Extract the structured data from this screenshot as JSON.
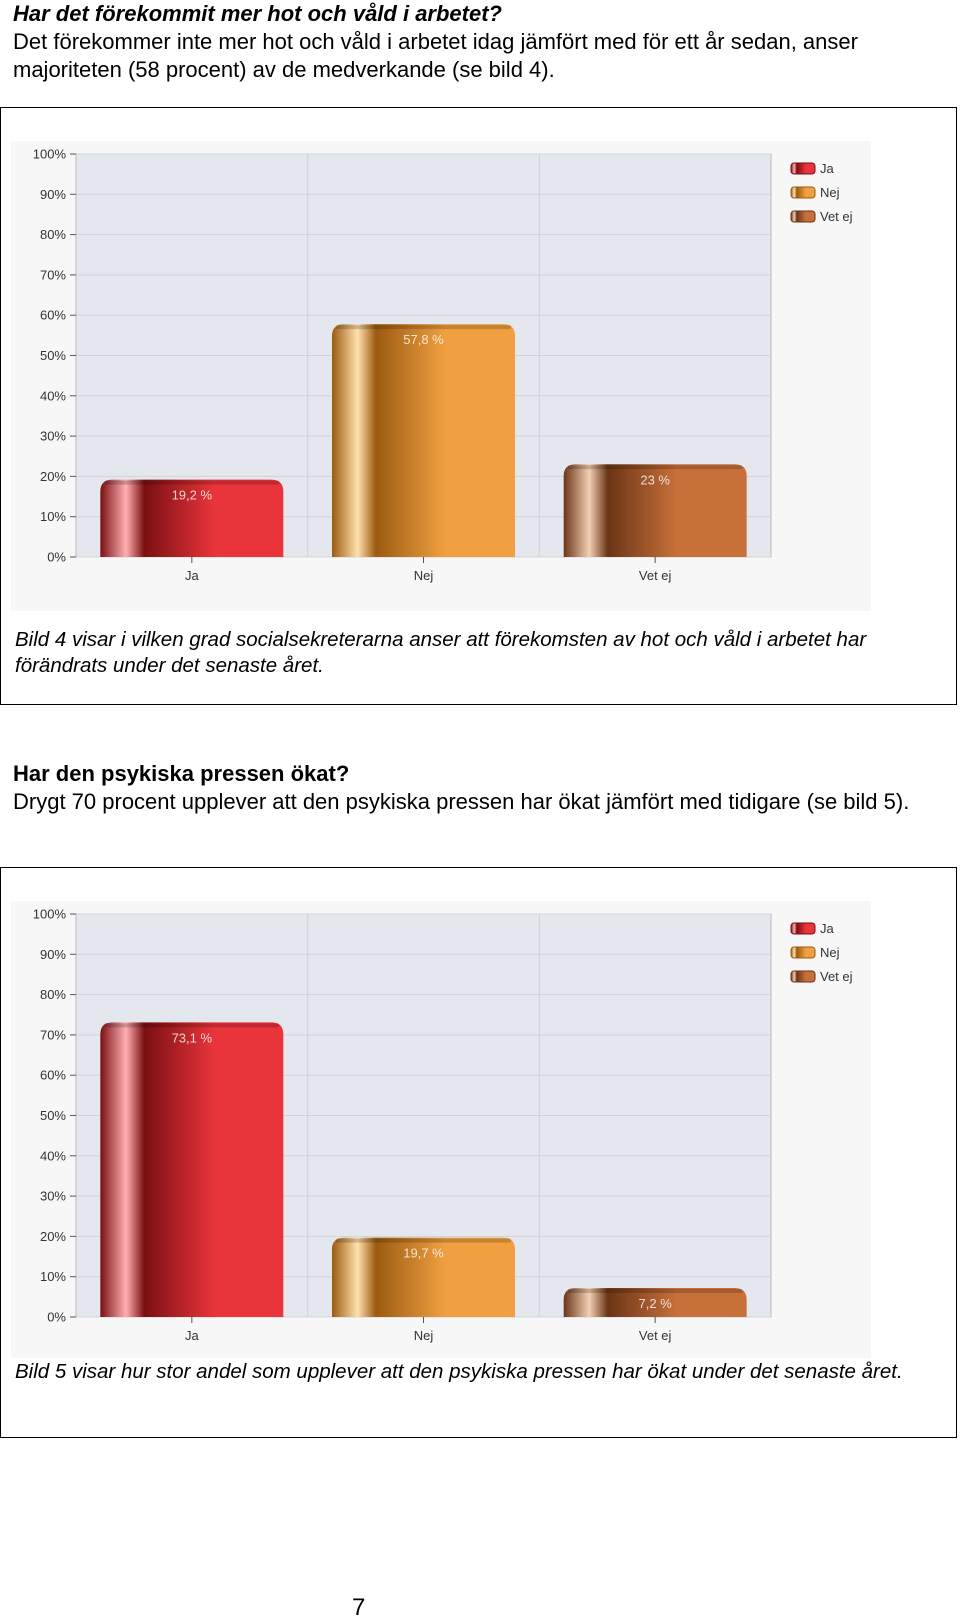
{
  "section1": {
    "heading": "Har det förekommit mer hot och våld i arbetet?",
    "body": "Det förekommer inte mer hot och våld i arbetet idag jämfört med för ett år sedan, anser majoriteten (58 procent) av de medverkande (se bild 4).",
    "caption": "Bild 4 visar i vilken grad socialsekreterarna anser att förekomsten av hot och våld i arbetet har förändrats under det senaste året."
  },
  "section2": {
    "heading": "Har den psykiska pressen ökat?",
    "body": "Drygt 70 procent upplever att den psykiska pressen har ökat jämfört med tidigare (se bild 5).",
    "caption": "Bild 5 visar hur stor andel som upplever att den psykiska pressen har ökat under det senaste året."
  },
  "page_number": "7",
  "colors": {
    "ja": "#e8343a",
    "nej": "#f0a040",
    "vet_ej": "#c8703a"
  },
  "chart_data": [
    {
      "type": "bar",
      "categories": [
        "Ja",
        "Nej",
        "Vet ej"
      ],
      "values": [
        19.2,
        57.8,
        23
      ],
      "value_labels": [
        "19,2 %",
        "57,8 %",
        "23 %"
      ],
      "y_ticks": [
        "0%",
        "10%",
        "20%",
        "30%",
        "40%",
        "50%",
        "60%",
        "70%",
        "80%",
        "90%",
        "100%"
      ],
      "ylim": [
        0,
        100
      ],
      "legend": [
        "Ja",
        "Nej",
        "Vet ej"
      ],
      "legend_position": "top-right",
      "grid": true,
      "title": "",
      "xlabel": "",
      "ylabel": ""
    },
    {
      "type": "bar",
      "categories": [
        "Ja",
        "Nej",
        "Vet ej"
      ],
      "values": [
        73.1,
        19.7,
        7.2
      ],
      "value_labels": [
        "73,1 %",
        "19,7 %",
        "7,2 %"
      ],
      "y_ticks": [
        "0%",
        "10%",
        "20%",
        "30%",
        "40%",
        "50%",
        "60%",
        "70%",
        "80%",
        "90%",
        "100%"
      ],
      "ylim": [
        0,
        100
      ],
      "legend": [
        "Ja",
        "Nej",
        "Vet ej"
      ],
      "legend_position": "top-right",
      "grid": true,
      "title": "",
      "xlabel": "",
      "ylabel": ""
    }
  ]
}
